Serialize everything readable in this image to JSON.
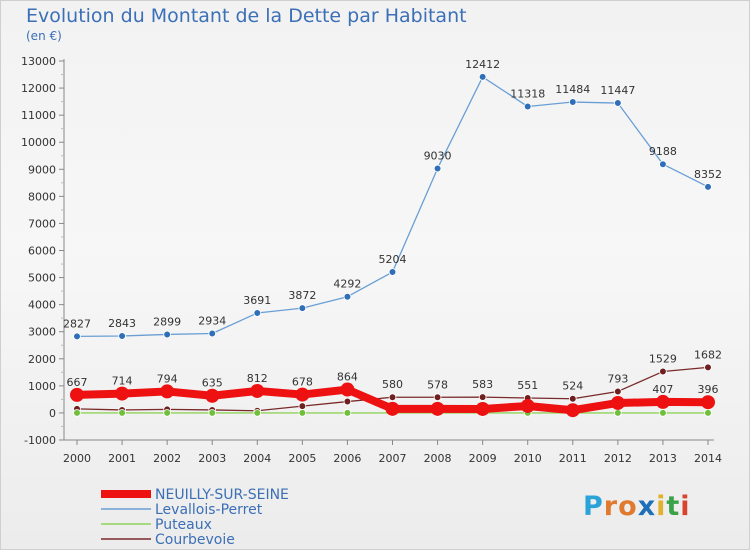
{
  "title": "Evolution du Montant de la Dette par Habitant",
  "subtitle": "(en €)",
  "brand": {
    "letters": [
      "P",
      "r",
      "o",
      "x",
      "i",
      "t",
      "i"
    ],
    "colors": [
      "#2aa3d8",
      "#e07a2e",
      "#e07a2e",
      "#1f6fb8",
      "#e0b22e",
      "#3aa34a",
      "#d8452e"
    ]
  },
  "chart_data": {
    "type": "line",
    "x": [
      2000,
      2001,
      2002,
      2003,
      2004,
      2005,
      2006,
      2007,
      2008,
      2009,
      2010,
      2011,
      2012,
      2013,
      2014
    ],
    "ylim": [
      -1000,
      13000
    ],
    "yticks": [
      -1000,
      0,
      1000,
      2000,
      3000,
      4000,
      5000,
      6000,
      7000,
      8000,
      9000,
      10000,
      11000,
      12000,
      13000
    ],
    "grid": false,
    "legend_position": "bottom-left",
    "series": [
      {
        "name": "Levallois-Perret",
        "color": "#6a9fd4",
        "marker": "#2f6fb8",
        "values": [
          2827,
          2843,
          2899,
          2934,
          3691,
          3872,
          4292,
          5204,
          9030,
          12412,
          11318,
          11484,
          11447,
          9188,
          8352
        ],
        "labels": [
          "2827",
          "2843",
          "2899",
          "2934",
          "3691",
          "3872",
          "4292",
          "5204",
          "9030",
          "12412",
          "11318",
          "11484",
          "11447",
          "9188",
          "8352"
        ]
      },
      {
        "name": "Courbevoie",
        "color": "#7a2a2a",
        "marker": "#6e1f1f",
        "values": [
          150,
          110,
          130,
          110,
          80,
          250,
          420,
          580,
          578,
          583,
          551,
          524,
          793,
          1529,
          1682
        ],
        "labels": [
          "",
          "",
          "",
          "",
          "",
          "",
          "",
          "580",
          "578",
          "583",
          "551",
          "524",
          "793",
          "1529",
          "1682"
        ]
      },
      {
        "name": "Puteaux",
        "color": "#8fd45a",
        "marker": "#6fbf3a",
        "values": [
          0,
          0,
          0,
          0,
          0,
          0,
          0,
          0,
          0,
          0,
          0,
          0,
          0,
          0,
          0
        ],
        "labels": [
          "",
          "",
          "",
          "",
          "",
          "",
          "",
          "",
          "",
          "",
          "",
          "",
          "",
          "",
          ""
        ]
      },
      {
        "name": "NEUILLY-SUR-SEINE",
        "color": "#ee1111",
        "marker": "#ee1111",
        "values": [
          667,
          714,
          794,
          635,
          812,
          678,
          864,
          151,
          151,
          147,
          257,
          100,
          368,
          407,
          396
        ],
        "labels": [
          "667",
          "714",
          "794",
          "635",
          "812",
          "678",
          "864",
          "",
          "",
          "",
          "",
          "",
          "",
          "407",
          "396"
        ]
      }
    ],
    "legend_order": [
      "NEUILLY-SUR-SEINE",
      "Levallois-Perret",
      "Puteaux",
      "Courbevoie"
    ]
  }
}
